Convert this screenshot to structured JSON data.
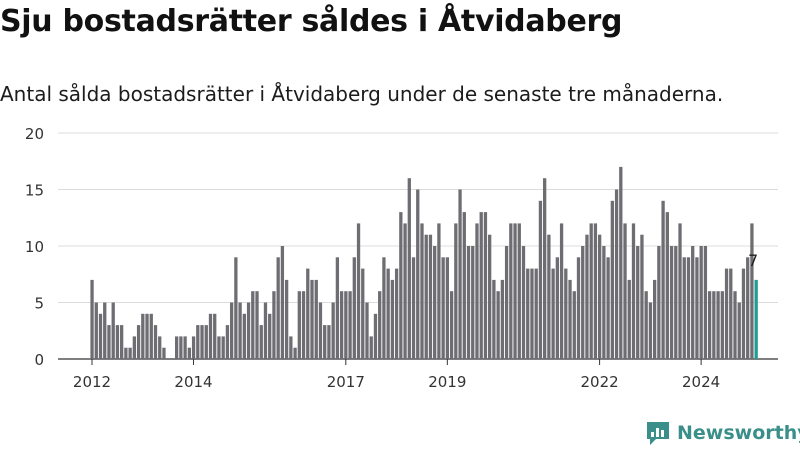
{
  "header": {
    "title": "Sju bostadsrätter såldes i Åtvidaberg",
    "subtitle": "Antal sålda bostadsrätter i Åtvidaberg under de senaste tre månaderna."
  },
  "brand": {
    "name": "Newsworthy"
  },
  "colors": {
    "bar": "#6e6d72",
    "highlight": "#1f9c94",
    "grid": "#dcdcdc",
    "brand": "#3a8f8a"
  },
  "chart_data": {
    "type": "bar",
    "start_period": "2012-01",
    "period": "month",
    "values": [
      7,
      5,
      4,
      5,
      3,
      5,
      3,
      3,
      1,
      1,
      2,
      3,
      4,
      4,
      4,
      3,
      2,
      1,
      0,
      0,
      2,
      2,
      2,
      1,
      2,
      3,
      3,
      3,
      4,
      4,
      2,
      2,
      3,
      5,
      9,
      5,
      4,
      5,
      6,
      6,
      3,
      5,
      4,
      6,
      9,
      10,
      7,
      2,
      1,
      6,
      6,
      8,
      7,
      7,
      5,
      3,
      3,
      5,
      9,
      6,
      6,
      6,
      9,
      12,
      8,
      5,
      2,
      4,
      6,
      9,
      8,
      7,
      8,
      13,
      12,
      16,
      9,
      15,
      12,
      11,
      11,
      10,
      12,
      9,
      9,
      6,
      12,
      15,
      13,
      10,
      10,
      12,
      13,
      13,
      11,
      7,
      6,
      7,
      10,
      12,
      12,
      12,
      10,
      8,
      8,
      8,
      14,
      16,
      11,
      8,
      9,
      12,
      8,
      7,
      6,
      9,
      10,
      11,
      12,
      12,
      11,
      10,
      9,
      14,
      15,
      17,
      12,
      7,
      12,
      10,
      11,
      6,
      5,
      7,
      10,
      14,
      13,
      10,
      10,
      12,
      9,
      9,
      10,
      9,
      10,
      10,
      6,
      6,
      6,
      6,
      8,
      8,
      6,
      5,
      8,
      9,
      12,
      7
    ],
    "highlight_last": true,
    "last_label": "7",
    "x_ticks": [
      "2012",
      "2014",
      "2017",
      "2019",
      "2022",
      "2024"
    ],
    "y_ticks": [
      "0",
      "5",
      "10",
      "15",
      "20"
    ],
    "ylim": [
      0,
      20
    ],
    "xlabel": "",
    "ylabel": "",
    "grid": true
  }
}
